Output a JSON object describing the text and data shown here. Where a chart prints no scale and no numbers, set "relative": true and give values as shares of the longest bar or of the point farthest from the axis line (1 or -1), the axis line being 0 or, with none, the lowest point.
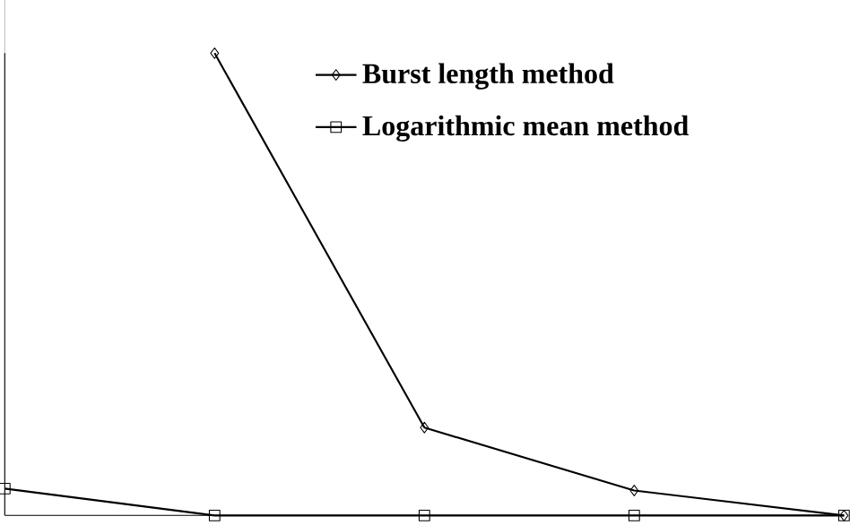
{
  "chart_data": {
    "type": "line",
    "relative": true,
    "categories": [
      null,
      null,
      null,
      null,
      null
    ],
    "series": [
      {
        "name": "Burst length method",
        "color": "#000000",
        "marker": "diamond",
        "values": [
          null,
          1,
          0.19,
          0.054,
          0
        ]
      },
      {
        "name": "Logarithmic mean method",
        "color": "#000000",
        "marker": "square",
        "values": [
          0.058,
          0,
          0,
          0,
          0
        ]
      }
    ],
    "legend": "top right"
  }
}
